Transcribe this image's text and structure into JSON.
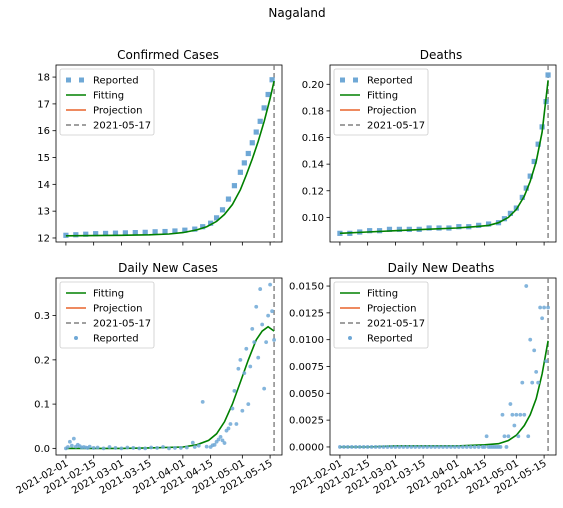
{
  "figure": {
    "suptitle": "Nagaland"
  },
  "chart_data": [
    {
      "type": "line",
      "title": "Confirmed Cases",
      "ylim": [
        11.85,
        18.45
      ],
      "y_ticks": [
        "12",
        "13",
        "14",
        "15",
        "16",
        "17",
        "18"
      ],
      "y_tick_values": [
        12,
        13,
        14,
        15,
        16,
        17,
        18
      ],
      "x_ticks": [],
      "legend": [
        "Reported",
        "Fitting",
        "Projection",
        "2021-05-17"
      ],
      "legend_placement": "upper-left",
      "grid": false,
      "vline_date": "2021-05-17",
      "series": [
        {
          "name": "Reported",
          "style": "square-markers",
          "color": "#6fa8d6",
          "x": [
            "2021-02-01",
            "2021-02-06",
            "2021-02-11",
            "2021-02-16",
            "2021-02-21",
            "2021-02-26",
            "2021-03-03",
            "2021-03-08",
            "2021-03-13",
            "2021-03-18",
            "2021-03-23",
            "2021-03-28",
            "2021-04-02",
            "2021-04-07",
            "2021-04-11",
            "2021-04-15",
            "2021-04-18",
            "2021-04-21",
            "2021-04-24",
            "2021-04-27",
            "2021-04-30",
            "2021-05-02",
            "2021-05-04",
            "2021-05-06",
            "2021-05-08",
            "2021-05-10",
            "2021-05-12",
            "2021-05-14",
            "2021-05-16"
          ],
          "y": [
            12.1,
            12.12,
            12.14,
            12.16,
            12.17,
            12.18,
            12.19,
            12.2,
            12.21,
            12.23,
            12.24,
            12.26,
            12.29,
            12.33,
            12.42,
            12.55,
            12.75,
            13.05,
            13.45,
            13.95,
            14.45,
            14.8,
            15.15,
            15.55,
            15.95,
            16.35,
            16.85,
            17.35,
            17.9
          ]
        },
        {
          "name": "Fitting",
          "style": "line",
          "color": "#008000",
          "x": [
            "2021-02-01",
            "2021-02-15",
            "2021-03-01",
            "2021-03-15",
            "2021-03-25",
            "2021-04-01",
            "2021-04-08",
            "2021-04-13",
            "2021-04-18",
            "2021-04-22",
            "2021-04-26",
            "2021-04-30",
            "2021-05-03",
            "2021-05-06",
            "2021-05-09",
            "2021-05-12",
            "2021-05-15",
            "2021-05-17"
          ],
          "y": [
            12.08,
            12.09,
            12.1,
            12.12,
            12.15,
            12.2,
            12.3,
            12.42,
            12.62,
            12.88,
            13.25,
            13.8,
            14.35,
            14.95,
            15.6,
            16.35,
            17.2,
            17.85
          ]
        },
        {
          "name": "Projection",
          "style": "line",
          "color": "#e8632c",
          "x": [],
          "y": []
        }
      ]
    },
    {
      "type": "line",
      "title": "Deaths",
      "ylim": [
        0.0815,
        0.2145
      ],
      "y_ticks": [
        "0.10",
        "0.12",
        "0.14",
        "0.16",
        "0.18",
        "0.20"
      ],
      "y_tick_values": [
        0.1,
        0.12,
        0.14,
        0.16,
        0.18,
        0.2
      ],
      "x_ticks": [],
      "legend": [
        "Reported",
        "Fitting",
        "Projection",
        "2021-05-17"
      ],
      "legend_placement": "upper-left",
      "grid": false,
      "vline_date": "2021-05-17",
      "series": [
        {
          "name": "Reported",
          "style": "square-markers",
          "color": "#6fa8d6",
          "x": [
            "2021-02-01",
            "2021-02-06",
            "2021-02-11",
            "2021-02-16",
            "2021-02-21",
            "2021-02-26",
            "2021-03-03",
            "2021-03-08",
            "2021-03-13",
            "2021-03-18",
            "2021-03-23",
            "2021-03-28",
            "2021-04-02",
            "2021-04-07",
            "2021-04-12",
            "2021-04-17",
            "2021-04-22",
            "2021-04-25",
            "2021-04-28",
            "2021-05-01",
            "2021-05-04",
            "2021-05-06",
            "2021-05-08",
            "2021-05-10",
            "2021-05-12",
            "2021-05-14",
            "2021-05-16",
            "2021-05-17"
          ],
          "y": [
            0.088,
            0.088,
            0.089,
            0.09,
            0.09,
            0.091,
            0.091,
            0.091,
            0.091,
            0.092,
            0.092,
            0.092,
            0.093,
            0.093,
            0.094,
            0.095,
            0.096,
            0.099,
            0.103,
            0.107,
            0.115,
            0.122,
            0.131,
            0.142,
            0.155,
            0.168,
            0.187,
            0.207
          ]
        },
        {
          "name": "Fitting",
          "style": "line",
          "color": "#008000",
          "x": [
            "2021-02-01",
            "2021-02-15",
            "2021-03-01",
            "2021-03-15",
            "2021-04-01",
            "2021-04-10",
            "2021-04-17",
            "2021-04-22",
            "2021-04-27",
            "2021-05-01",
            "2021-05-05",
            "2021-05-08",
            "2021-05-11",
            "2021-05-14",
            "2021-05-17"
          ],
          "y": [
            0.088,
            0.089,
            0.09,
            0.091,
            0.092,
            0.093,
            0.094,
            0.096,
            0.1,
            0.106,
            0.116,
            0.127,
            0.142,
            0.164,
            0.203
          ]
        },
        {
          "name": "Projection",
          "style": "line",
          "color": "#e8632c",
          "x": [],
          "y": []
        }
      ]
    },
    {
      "type": "scatter",
      "title": "Daily New Cases",
      "ylim": [
        -0.015,
        0.385
      ],
      "y_ticks": [
        "0.0",
        "0.1",
        "0.2",
        "0.3"
      ],
      "y_tick_values": [
        0.0,
        0.1,
        0.2,
        0.3
      ],
      "x_ticks": [
        "2021-02-01",
        "2021-02-15",
        "2021-03-01",
        "2021-03-15",
        "2021-04-01",
        "2021-04-15",
        "2021-05-01",
        "2021-05-15"
      ],
      "legend": [
        "Fitting",
        "Projection",
        "2021-05-17",
        "Reported"
      ],
      "legend_placement": "upper-left",
      "grid": false,
      "vline_date": "2021-05-17",
      "series": [
        {
          "name": "Fitting",
          "style": "line",
          "color": "#008000",
          "x": [
            "2021-02-01",
            "2021-02-15",
            "2021-03-01",
            "2021-03-15",
            "2021-04-01",
            "2021-04-08",
            "2021-04-14",
            "2021-04-18",
            "2021-04-22",
            "2021-04-26",
            "2021-04-30",
            "2021-05-04",
            "2021-05-08",
            "2021-05-11",
            "2021-05-14",
            "2021-05-17"
          ],
          "y": [
            0.0,
            0.0,
            0.0,
            0.001,
            0.003,
            0.008,
            0.018,
            0.033,
            0.06,
            0.1,
            0.15,
            0.2,
            0.245,
            0.265,
            0.275,
            0.265
          ]
        },
        {
          "name": "Projection",
          "style": "line",
          "color": "#e8632c",
          "x": [],
          "y": []
        },
        {
          "name": "Reported",
          "style": "dot-markers",
          "color": "#6fa8d6",
          "x": [
            "2021-02-01",
            "2021-02-02",
            "2021-02-03",
            "2021-02-04",
            "2021-02-05",
            "2021-02-06",
            "2021-02-07",
            "2021-02-08",
            "2021-02-09",
            "2021-02-10",
            "2021-02-11",
            "2021-02-12",
            "2021-02-13",
            "2021-02-15",
            "2021-02-17",
            "2021-02-20",
            "2021-02-23",
            "2021-02-26",
            "2021-03-01",
            "2021-03-04",
            "2021-03-07",
            "2021-03-10",
            "2021-03-13",
            "2021-03-16",
            "2021-03-19",
            "2021-03-22",
            "2021-03-25",
            "2021-03-28",
            "2021-03-31",
            "2021-04-03",
            "2021-04-06",
            "2021-04-07",
            "2021-04-09",
            "2021-04-11",
            "2021-04-13",
            "2021-04-15",
            "2021-04-16",
            "2021-04-17",
            "2021-04-18",
            "2021-04-19",
            "2021-04-20",
            "2021-04-21",
            "2021-04-22",
            "2021-04-23",
            "2021-04-24",
            "2021-04-25",
            "2021-04-26",
            "2021-04-27",
            "2021-04-28",
            "2021-04-29",
            "2021-04-30",
            "2021-05-01",
            "2021-05-02",
            "2021-05-03",
            "2021-05-04",
            "2021-05-05",
            "2021-05-06",
            "2021-05-07",
            "2021-05-08",
            "2021-05-09",
            "2021-05-10",
            "2021-05-11",
            "2021-05-12",
            "2021-05-13",
            "2021-05-14",
            "2021-05-15",
            "2021-05-16",
            "2021-05-17"
          ],
          "y": [
            0.0,
            0.003,
            0.015,
            0.006,
            0.022,
            0.004,
            0.008,
            0.005,
            0.002,
            0.003,
            0.002,
            0.001,
            0.004,
            0.001,
            0.002,
            0.0,
            0.003,
            0.001,
            0.0,
            0.002,
            0.001,
            0.0,
            0.0,
            0.002,
            0.001,
            0.003,
            0.0,
            0.001,
            0.001,
            0.002,
            0.013,
            0.003,
            0.006,
            0.105,
            0.004,
            0.003,
            0.007,
            0.008,
            0.015,
            0.02,
            0.026,
            0.018,
            0.012,
            0.04,
            0.045,
            0.055,
            0.09,
            0.13,
            0.055,
            0.18,
            0.2,
            0.085,
            0.17,
            0.225,
            0.1,
            0.185,
            0.27,
            0.24,
            0.32,
            0.205,
            0.36,
            0.28,
            0.135,
            0.24,
            0.3,
            0.37,
            0.31,
            0.245
          ]
        }
      ]
    },
    {
      "type": "scatter",
      "title": "Daily New Deaths",
      "ylim": [
        -0.00075,
        0.01575
      ],
      "y_ticks": [
        "0.0000",
        "0.0025",
        "0.0050",
        "0.0075",
        "0.0100",
        "0.0125",
        "0.0150"
      ],
      "y_tick_values": [
        0.0,
        0.0025,
        0.005,
        0.0075,
        0.01,
        0.0125,
        0.015
      ],
      "x_ticks": [
        "2021-02-01",
        "2021-02-15",
        "2021-03-01",
        "2021-03-15",
        "2021-04-01",
        "2021-04-15",
        "2021-05-01",
        "2021-05-15"
      ],
      "legend": [
        "Fitting",
        "Projection",
        "2021-05-17",
        "Reported"
      ],
      "legend_placement": "upper-left",
      "grid": false,
      "vline_date": "2021-05-17",
      "series": [
        {
          "name": "Fitting",
          "style": "line",
          "color": "#008000",
          "x": [
            "2021-02-01",
            "2021-02-15",
            "2021-03-01",
            "2021-03-15",
            "2021-04-01",
            "2021-04-15",
            "2021-04-22",
            "2021-04-27",
            "2021-05-01",
            "2021-05-05",
            "2021-05-08",
            "2021-05-11",
            "2021-05-14",
            "2021-05-17"
          ],
          "y": [
            0.0,
            0.0,
            0.0001,
            0.0001,
            0.0001,
            0.0002,
            0.0003,
            0.0006,
            0.0011,
            0.002,
            0.003,
            0.0045,
            0.0068,
            0.0099
          ]
        },
        {
          "name": "Projection",
          "style": "line",
          "color": "#e8632c",
          "x": [],
          "y": []
        },
        {
          "name": "Reported",
          "style": "dot-markers",
          "color": "#6fa8d6",
          "x": [
            "2021-02-01",
            "2021-02-03",
            "2021-02-05",
            "2021-02-07",
            "2021-02-09",
            "2021-02-11",
            "2021-02-13",
            "2021-02-15",
            "2021-02-17",
            "2021-02-19",
            "2021-02-21",
            "2021-02-23",
            "2021-02-25",
            "2021-02-27",
            "2021-03-01",
            "2021-03-03",
            "2021-03-05",
            "2021-03-07",
            "2021-03-09",
            "2021-03-11",
            "2021-03-13",
            "2021-03-15",
            "2021-03-17",
            "2021-03-19",
            "2021-03-21",
            "2021-03-23",
            "2021-03-25",
            "2021-03-27",
            "2021-03-29",
            "2021-03-31",
            "2021-04-02",
            "2021-04-04",
            "2021-04-06",
            "2021-04-08",
            "2021-04-10",
            "2021-04-12",
            "2021-04-14",
            "2021-04-15",
            "2021-04-16",
            "2021-04-17",
            "2021-04-18",
            "2021-04-19",
            "2021-04-20",
            "2021-04-21",
            "2021-04-22",
            "2021-04-23",
            "2021-04-24",
            "2021-04-25",
            "2021-04-26",
            "2021-04-27",
            "2021-04-28",
            "2021-04-29",
            "2021-04-30",
            "2021-05-01",
            "2021-05-02",
            "2021-05-03",
            "2021-05-04",
            "2021-05-05",
            "2021-05-06",
            "2021-05-07",
            "2021-05-08",
            "2021-05-09",
            "2021-05-10",
            "2021-05-11",
            "2021-05-12",
            "2021-05-13",
            "2021-05-14",
            "2021-05-15",
            "2021-05-16",
            "2021-05-17"
          ],
          "y": [
            0,
            0,
            0,
            0,
            0,
            0,
            0,
            0,
            0,
            0,
            0,
            0,
            0,
            0,
            0,
            0,
            0,
            0,
            0,
            0,
            0,
            0,
            0,
            0,
            0,
            0,
            0,
            0,
            0,
            0,
            0,
            0,
            0,
            0,
            0,
            0,
            0,
            0,
            0.001,
            0,
            0,
            0,
            0,
            0,
            0,
            0,
            0.003,
            0.001,
            0,
            0.001,
            0.004,
            0.003,
            0.002,
            0.003,
            0.001,
            0.003,
            0.006,
            0.003,
            0.015,
            0.001,
            0.01,
            0.006,
            0.009,
            0.007,
            0.006,
            0.013,
            0.012,
            0.013,
            0.008,
            0.013
          ]
        }
      ]
    }
  ]
}
